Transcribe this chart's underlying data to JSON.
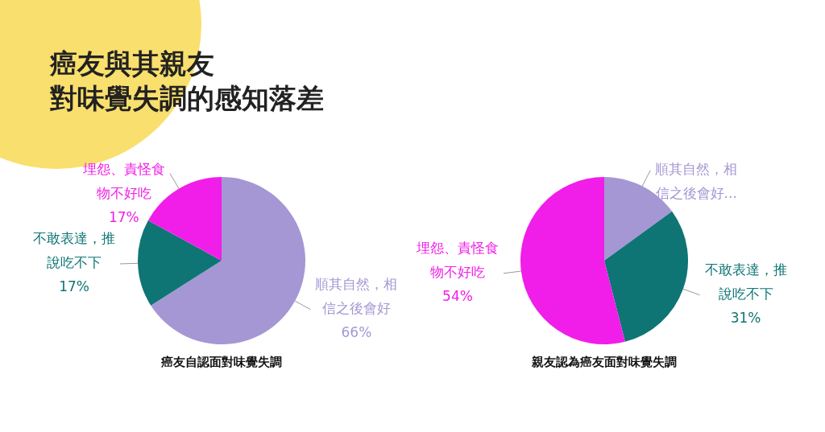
{
  "chart_data": [
    {
      "type": "pie",
      "title": "癌友與其親友",
      "subtitle": "對味覺失調的感知落差",
      "xlabel": "癌友自認面對味覺失調",
      "categories": [
        "順其自然，相信之後會好",
        "不敢表達，推說吃不下",
        "埋怨、責怪食物不好吃"
      ],
      "values": [
        66,
        17,
        17
      ],
      "colors": [
        "#a597d4",
        "#0e7574",
        "#f01ee8"
      ],
      "value_labels": [
        "66%",
        "17%",
        "17%"
      ]
    },
    {
      "type": "pie",
      "xlabel": "親友認為癌友面對味覺失調",
      "categories": [
        "順其自然，相信之後會好...",
        "不敢表達，推說吃不下",
        "埋怨、責怪食物不好吃"
      ],
      "values": [
        15,
        31,
        54
      ],
      "colors": [
        "#a597d4",
        "#0e7574",
        "#f01ee8"
      ],
      "value_labels": [
        null,
        "31%",
        "54%"
      ]
    }
  ]
}
